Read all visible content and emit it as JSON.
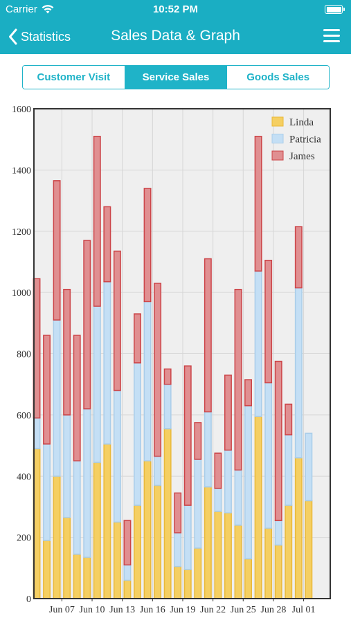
{
  "status_bar": {
    "carrier": "Carrier",
    "time": "10:52 PM"
  },
  "nav": {
    "back_label": "Statistics",
    "title": "Sales Data & Graph"
  },
  "tabs": [
    {
      "label": "Customer Visit",
      "active": false
    },
    {
      "label": "Service Sales",
      "active": true
    },
    {
      "label": "Goods Sales",
      "active": false
    }
  ],
  "colors": {
    "header": "#1aaec3",
    "accent": "#1fb3c8",
    "linda": "#f5cf62",
    "patricia": "#c4dff5",
    "james": "#e08f91"
  },
  "chart_data": {
    "type": "bar",
    "stacked": true,
    "ylim": [
      0,
      1600
    ],
    "yticks": [
      0,
      200,
      400,
      600,
      800,
      1000,
      1200,
      1400,
      1600
    ],
    "xtick_labels": [
      "Jun 07",
      "Jun 10",
      "Jun 13",
      "Jun 16",
      "Jun 19",
      "Jun 22",
      "Jun 25",
      "Jun 28",
      "Jul 01"
    ],
    "xtick_indices": [
      2.5,
      5.5,
      8.5,
      11.5,
      14.5,
      17.5,
      20.5,
      23.5,
      26.5
    ],
    "grid": true,
    "legend_position": "top-right",
    "series": [
      {
        "name": "Linda",
        "color": "#f5cf62",
        "stroke": "#e9b93a",
        "values": [
          490,
          190,
          400,
          265,
          145,
          135,
          445,
          505,
          250,
          60,
          305,
          450,
          370,
          555,
          105,
          95,
          165,
          365,
          285,
          280,
          240,
          130,
          595,
          230,
          175,
          305,
          460,
          320
        ]
      },
      {
        "name": "Patricia",
        "color": "#c4dff5",
        "stroke": "#a9cde9",
        "values": [
          100,
          315,
          510,
          335,
          305,
          485,
          510,
          530,
          430,
          50,
          465,
          520,
          95,
          145,
          110,
          210,
          290,
          245,
          75,
          205,
          180,
          500,
          475,
          475,
          80,
          230,
          555,
          220
        ]
      },
      {
        "name": "James",
        "color": "#e08f91",
        "stroke": "#cc4448",
        "values": [
          455,
          355,
          455,
          410,
          410,
          550,
          555,
          245,
          455,
          145,
          160,
          370,
          565,
          50,
          130,
          455,
          120,
          500,
          115,
          245,
          590,
          85,
          440,
          400,
          520,
          100,
          200,
          0
        ]
      }
    ]
  }
}
